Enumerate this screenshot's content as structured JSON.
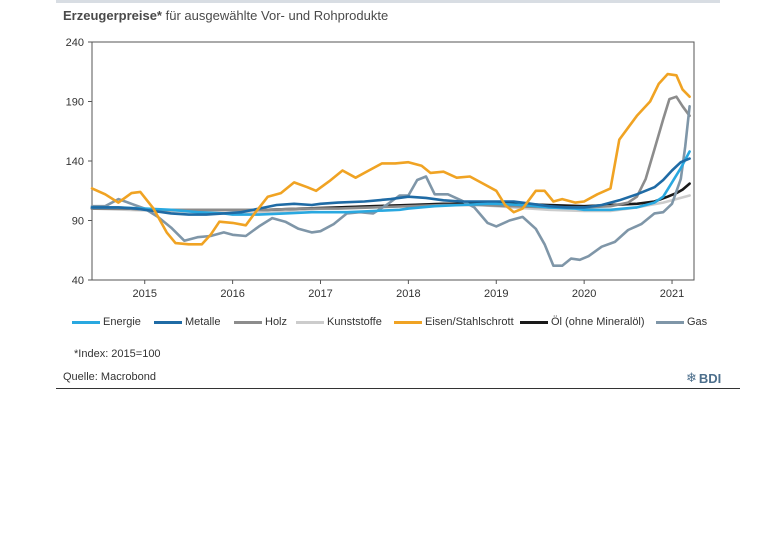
{
  "header": {
    "title_bold": "Erzeugerpreise*",
    "title_rest": " für ausgewählte Vor- und Rohprodukte"
  },
  "footnote": "*Index: 2015=100",
  "source": "Quelle: Macrobond",
  "logo": {
    "text": "BDI",
    "icon": "bdi-snowflake-icon",
    "color": "#4d6f8c"
  },
  "chart_data": {
    "type": "line",
    "title": "Erzeugerpreise* für ausgewählte Vor- und Rohprodukte",
    "xlabel": "",
    "ylabel": "",
    "ylim": [
      40,
      240
    ],
    "yticks": [
      40,
      90,
      140,
      190,
      240
    ],
    "xlim": [
      2014.4,
      2021.25
    ],
    "xtick_labels": [
      "2015",
      "2016",
      "2017",
      "2018",
      "2019",
      "2020",
      "2021"
    ],
    "grid": false,
    "legend_position": "bottom",
    "series": [
      {
        "name": "Energie",
        "color": "#29a8e0",
        "points": [
          [
            2014.4,
            101
          ],
          [
            2014.7,
            101
          ],
          [
            2015.0,
            100
          ],
          [
            2015.3,
            99
          ],
          [
            2015.6,
            97
          ],
          [
            2015.9,
            96
          ],
          [
            2016.0,
            95
          ],
          [
            2016.3,
            95
          ],
          [
            2016.6,
            96
          ],
          [
            2016.9,
            97
          ],
          [
            2017.0,
            97
          ],
          [
            2017.3,
            97
          ],
          [
            2017.6,
            98
          ],
          [
            2017.9,
            99
          ],
          [
            2018.0,
            100
          ],
          [
            2018.3,
            102
          ],
          [
            2018.6,
            103
          ],
          [
            2018.9,
            104
          ],
          [
            2019.0,
            104
          ],
          [
            2019.3,
            103
          ],
          [
            2019.6,
            101
          ],
          [
            2019.9,
            100
          ],
          [
            2020.0,
            99
          ],
          [
            2020.3,
            99
          ],
          [
            2020.6,
            101
          ],
          [
            2020.8,
            105
          ],
          [
            2020.9,
            110
          ],
          [
            2021.0,
            122
          ],
          [
            2021.1,
            134
          ],
          [
            2021.2,
            148
          ]
        ]
      },
      {
        "name": "Metalle",
        "color": "#1f6ba5",
        "points": [
          [
            2014.4,
            101
          ],
          [
            2014.7,
            101
          ],
          [
            2014.9,
            100
          ],
          [
            2015.1,
            98
          ],
          [
            2015.3,
            96
          ],
          [
            2015.5,
            95
          ],
          [
            2015.7,
            95
          ],
          [
            2015.9,
            96
          ],
          [
            2016.1,
            97
          ],
          [
            2016.3,
            100
          ],
          [
            2016.5,
            103
          ],
          [
            2016.7,
            104
          ],
          [
            2016.9,
            103
          ],
          [
            2017.0,
            104
          ],
          [
            2017.2,
            105
          ],
          [
            2017.5,
            106
          ],
          [
            2017.8,
            108
          ],
          [
            2018.0,
            110
          ],
          [
            2018.2,
            109
          ],
          [
            2018.4,
            107
          ],
          [
            2018.6,
            106
          ],
          [
            2018.9,
            106
          ],
          [
            2019.0,
            106
          ],
          [
            2019.2,
            106
          ],
          [
            2019.4,
            104
          ],
          [
            2019.6,
            102
          ],
          [
            2019.8,
            101
          ],
          [
            2020.0,
            101
          ],
          [
            2020.2,
            103
          ],
          [
            2020.4,
            107
          ],
          [
            2020.6,
            112
          ],
          [
            2020.8,
            118
          ],
          [
            2020.9,
            124
          ],
          [
            2021.0,
            132
          ],
          [
            2021.1,
            139
          ],
          [
            2021.2,
            142
          ]
        ]
      },
      {
        "name": "Holz",
        "color": "#8c8c8c",
        "points": [
          [
            2014.4,
            100
          ],
          [
            2014.8,
            100
          ],
          [
            2015.2,
            99
          ],
          [
            2015.6,
            99
          ],
          [
            2016.0,
            99
          ],
          [
            2016.4,
            99
          ],
          [
            2016.8,
            100
          ],
          [
            2017.2,
            100
          ],
          [
            2017.6,
            101
          ],
          [
            2018.0,
            102
          ],
          [
            2018.4,
            103
          ],
          [
            2018.8,
            103
          ],
          [
            2019.2,
            102
          ],
          [
            2019.6,
            101
          ],
          [
            2020.0,
            101
          ],
          [
            2020.3,
            102
          ],
          [
            2020.5,
            105
          ],
          [
            2020.6,
            110
          ],
          [
            2020.7,
            125
          ],
          [
            2020.8,
            150
          ],
          [
            2020.9,
            175
          ],
          [
            2020.97,
            192
          ],
          [
            2021.05,
            194
          ],
          [
            2021.12,
            186
          ],
          [
            2021.2,
            178
          ]
        ]
      },
      {
        "name": "Kunststoffe",
        "color": "#cccccc",
        "points": [
          [
            2014.4,
            100
          ],
          [
            2014.8,
            99
          ],
          [
            2015.2,
            98
          ],
          [
            2015.6,
            97
          ],
          [
            2016.0,
            96
          ],
          [
            2016.4,
            97
          ],
          [
            2016.8,
            99
          ],
          [
            2017.2,
            101
          ],
          [
            2017.6,
            102
          ],
          [
            2018.0,
            103
          ],
          [
            2018.4,
            104
          ],
          [
            2018.8,
            103
          ],
          [
            2019.2,
            101
          ],
          [
            2019.6,
            99
          ],
          [
            2020.0,
            98
          ],
          [
            2020.3,
            98
          ],
          [
            2020.6,
            101
          ],
          [
            2020.9,
            105
          ],
          [
            2021.0,
            107
          ],
          [
            2021.1,
            109
          ],
          [
            2021.2,
            111
          ]
        ]
      },
      {
        "name": "Eisen/Stahlschrott",
        "color": "#f0a323",
        "points": [
          [
            2014.4,
            117
          ],
          [
            2014.55,
            112
          ],
          [
            2014.7,
            105
          ],
          [
            2014.85,
            113
          ],
          [
            2014.95,
            114
          ],
          [
            2015.1,
            100
          ],
          [
            2015.25,
            80
          ],
          [
            2015.35,
            71
          ],
          [
            2015.5,
            70
          ],
          [
            2015.65,
            70
          ],
          [
            2015.75,
            78
          ],
          [
            2015.85,
            89
          ],
          [
            2016.0,
            88
          ],
          [
            2016.15,
            86
          ],
          [
            2016.25,
            96
          ],
          [
            2016.4,
            110
          ],
          [
            2016.55,
            113
          ],
          [
            2016.7,
            122
          ],
          [
            2016.85,
            118
          ],
          [
            2016.95,
            115
          ],
          [
            2017.1,
            123
          ],
          [
            2017.25,
            132
          ],
          [
            2017.4,
            126
          ],
          [
            2017.55,
            132
          ],
          [
            2017.7,
            138
          ],
          [
            2017.85,
            138
          ],
          [
            2018.0,
            139
          ],
          [
            2018.15,
            136
          ],
          [
            2018.25,
            130
          ],
          [
            2018.4,
            131
          ],
          [
            2018.55,
            126
          ],
          [
            2018.7,
            127
          ],
          [
            2018.85,
            121
          ],
          [
            2019.0,
            115
          ],
          [
            2019.1,
            103
          ],
          [
            2019.2,
            97
          ],
          [
            2019.3,
            100
          ],
          [
            2019.45,
            115
          ],
          [
            2019.55,
            115
          ],
          [
            2019.65,
            106
          ],
          [
            2019.75,
            108
          ],
          [
            2019.9,
            105
          ],
          [
            2020.0,
            106
          ],
          [
            2020.15,
            112
          ],
          [
            2020.3,
            117
          ],
          [
            2020.4,
            158
          ],
          [
            2020.5,
            168
          ],
          [
            2020.6,
            178
          ],
          [
            2020.75,
            190
          ],
          [
            2020.85,
            205
          ],
          [
            2020.95,
            213
          ],
          [
            2021.05,
            212
          ],
          [
            2021.12,
            200
          ],
          [
            2021.2,
            194
          ]
        ]
      },
      {
        "name": "Öl (ohne Mineralöl)",
        "color": "#1a1a1a",
        "points": [
          [
            2014.4,
            100
          ],
          [
            2014.8,
            100
          ],
          [
            2015.2,
            99
          ],
          [
            2015.6,
            99
          ],
          [
            2016.0,
            99
          ],
          [
            2016.4,
            99
          ],
          [
            2016.8,
            100
          ],
          [
            2017.2,
            101
          ],
          [
            2017.6,
            102
          ],
          [
            2018.0,
            103
          ],
          [
            2018.4,
            104
          ],
          [
            2018.8,
            104
          ],
          [
            2019.2,
            104
          ],
          [
            2019.6,
            103
          ],
          [
            2020.0,
            102
          ],
          [
            2020.3,
            103
          ],
          [
            2020.6,
            104
          ],
          [
            2020.8,
            106
          ],
          [
            2020.95,
            110
          ],
          [
            2021.05,
            113
          ],
          [
            2021.12,
            116
          ],
          [
            2021.2,
            121
          ]
        ]
      },
      {
        "name": "Gas",
        "color": "#7f96a8",
        "points": [
          [
            2014.4,
            102
          ],
          [
            2014.55,
            102
          ],
          [
            2014.7,
            108
          ],
          [
            2014.85,
            104
          ],
          [
            2015.0,
            100
          ],
          [
            2015.15,
            93
          ],
          [
            2015.3,
            84
          ],
          [
            2015.45,
            73
          ],
          [
            2015.6,
            76
          ],
          [
            2015.75,
            77
          ],
          [
            2015.9,
            80
          ],
          [
            2016.0,
            78
          ],
          [
            2016.15,
            77
          ],
          [
            2016.3,
            85
          ],
          [
            2016.45,
            92
          ],
          [
            2016.6,
            89
          ],
          [
            2016.75,
            83
          ],
          [
            2016.9,
            80
          ],
          [
            2017.0,
            81
          ],
          [
            2017.15,
            87
          ],
          [
            2017.3,
            96
          ],
          [
            2017.45,
            97
          ],
          [
            2017.6,
            96
          ],
          [
            2017.75,
            103
          ],
          [
            2017.9,
            111
          ],
          [
            2018.0,
            111
          ],
          [
            2018.1,
            124
          ],
          [
            2018.2,
            127
          ],
          [
            2018.3,
            112
          ],
          [
            2018.45,
            112
          ],
          [
            2018.6,
            107
          ],
          [
            2018.75,
            101
          ],
          [
            2018.9,
            88
          ],
          [
            2019.0,
            85
          ],
          [
            2019.15,
            90
          ],
          [
            2019.3,
            93
          ],
          [
            2019.45,
            83
          ],
          [
            2019.55,
            70
          ],
          [
            2019.65,
            52
          ],
          [
            2019.75,
            52
          ],
          [
            2019.85,
            58
          ],
          [
            2019.95,
            57
          ],
          [
            2020.05,
            60
          ],
          [
            2020.2,
            68
          ],
          [
            2020.35,
            72
          ],
          [
            2020.5,
            82
          ],
          [
            2020.65,
            87
          ],
          [
            2020.8,
            96
          ],
          [
            2020.9,
            97
          ],
          [
            2021.0,
            104
          ],
          [
            2021.1,
            125
          ],
          [
            2021.15,
            152
          ],
          [
            2021.2,
            186
          ]
        ]
      }
    ]
  }
}
